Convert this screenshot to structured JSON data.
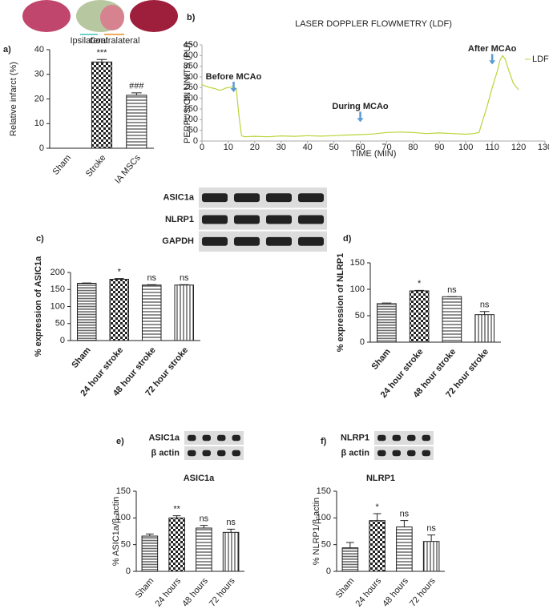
{
  "chart_data": [
    {
      "type": "bar",
      "label": "a)",
      "ylabel": "Relative infarct (%)",
      "region_labels": [
        "Ipsilateral",
        "Contralateral"
      ],
      "categories": [
        "Sham",
        "Stroke",
        "IA MSCs"
      ],
      "values": [
        0,
        35,
        21.5
      ],
      "errors": [
        0,
        1,
        1
      ],
      "annotations": [
        null,
        "***",
        "###"
      ],
      "patterns": [
        "checker",
        "checker",
        "hlines"
      ],
      "ylim": [
        0,
        40
      ],
      "yticks": [
        0,
        10,
        20,
        30,
        40
      ]
    },
    {
      "type": "line",
      "label": "b)",
      "title": "LASER DOPPLER FLOWMETRY (LDF)",
      "xlabel": "TIME (MIN)",
      "ylabel": "PERFUSION UNITS (PU)",
      "x": [
        0,
        1,
        2,
        3,
        4,
        5,
        6,
        7,
        8,
        9,
        10,
        11,
        12,
        13,
        14,
        15,
        16,
        20,
        25,
        30,
        35,
        40,
        45,
        50,
        55,
        60,
        65,
        70,
        75,
        80,
        85,
        90,
        95,
        100,
        103,
        105,
        106,
        108,
        110,
        112,
        113,
        114,
        115,
        116,
        118,
        120
      ],
      "series": [
        {
          "name": "LDF",
          "color": "#b7d63a",
          "values": [
            265,
            258,
            255,
            250,
            248,
            245,
            240,
            238,
            242,
            248,
            250,
            252,
            255,
            245,
            120,
            25,
            20,
            22,
            20,
            24,
            22,
            25,
            23,
            25,
            28,
            30,
            33,
            40,
            42,
            40,
            35,
            38,
            35,
            32,
            35,
            40,
            80,
            160,
            250,
            330,
            380,
            400,
            380,
            340,
            270,
            240
          ]
        }
      ],
      "annotations": [
        {
          "text": "Before MCAo",
          "x": 12,
          "y": 300
        },
        {
          "text": "During MCAo",
          "x": 60,
          "y": 160
        },
        {
          "text": "After MCAo",
          "x": 110,
          "y": 430
        }
      ],
      "xlim": [
        0,
        130
      ],
      "xticks": [
        0,
        10,
        20,
        30,
        40,
        50,
        60,
        70,
        80,
        90,
        100,
        110,
        120,
        130
      ],
      "ylim": [
        0,
        450
      ],
      "yticks": [
        0,
        50,
        100,
        150,
        200,
        250,
        300,
        350,
        400,
        450
      ]
    },
    {
      "type": "bar",
      "label": "c)",
      "ylabel": "% expression of ASIC1a",
      "blot_labels": [
        "ASIC1a",
        "NLRP1",
        "GAPDH"
      ],
      "categories": [
        "Sham",
        "24 hour stroke",
        "48 hour stroke",
        "72 hour stroke"
      ],
      "values": [
        168,
        180,
        163,
        163
      ],
      "errors": [
        1,
        2,
        1,
        1
      ],
      "annotations": [
        null,
        "*",
        "ns",
        "ns"
      ],
      "patterns": [
        "hfine",
        "checker",
        "hlines",
        "vlines"
      ],
      "ylim": [
        0,
        200
      ],
      "yticks": [
        0,
        50,
        100,
        150,
        200
      ]
    },
    {
      "type": "bar",
      "label": "d)",
      "ylabel": "% expression of NLRP1",
      "categories": [
        "Sham",
        "24 hour stroke",
        "48 hour stroke",
        "72 hour stroke"
      ],
      "values": [
        73,
        97,
        86,
        52
      ],
      "errors": [
        1,
        1,
        0,
        6
      ],
      "annotations": [
        null,
        "*",
        "ns",
        "ns"
      ],
      "patterns": [
        "hfine",
        "checker",
        "hlines",
        "vlines"
      ],
      "ylim": [
        0,
        150
      ],
      "yticks": [
        0,
        50,
        100,
        150
      ]
    },
    {
      "type": "bar",
      "label": "e)",
      "title": "ASIC1a",
      "ylabel": "% ASIC1a/β-actin",
      "blot_labels": [
        "ASIC1a",
        "β actin"
      ],
      "categories": [
        "Sham",
        "24 hours",
        "48 hours",
        "72 hours"
      ],
      "values": [
        66,
        100,
        81,
        73
      ],
      "errors": [
        4,
        4,
        5,
        6
      ],
      "annotations": [
        null,
        "**",
        "ns",
        "ns"
      ],
      "patterns": [
        "hfine",
        "checker",
        "hlines",
        "vlines"
      ],
      "ylim": [
        0,
        150
      ],
      "yticks": [
        0,
        50,
        100,
        150
      ]
    },
    {
      "type": "bar",
      "label": "f)",
      "title": "NLRP1",
      "ylabel": "% NLRP1/β-actin",
      "blot_labels": [
        "NLRP1",
        "β actin"
      ],
      "categories": [
        "Sham",
        "24 hours",
        "48 hours",
        "72 hours"
      ],
      "values": [
        44,
        95,
        83,
        56
      ],
      "errors": [
        10,
        13,
        12,
        12
      ],
      "annotations": [
        null,
        "*",
        "ns",
        "ns"
      ],
      "patterns": [
        "hfine",
        "checker",
        "hlines",
        "vlines"
      ],
      "ylim": [
        0,
        150
      ],
      "yticks": [
        0,
        50,
        100,
        150
      ]
    }
  ]
}
